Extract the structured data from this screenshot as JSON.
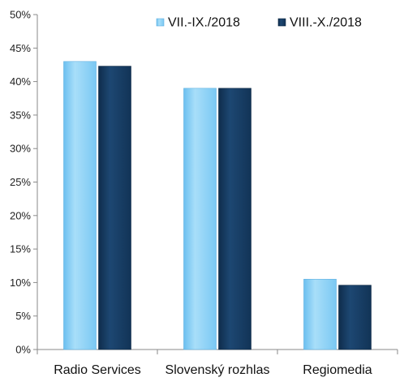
{
  "chart_data": {
    "type": "bar",
    "categories": [
      "Radio Services",
      "Slovenský rozhlas",
      "Regiomedia"
    ],
    "series": [
      {
        "name": "VII.-IX./2018",
        "values": [
          43,
          39,
          10.5
        ],
        "color": "#8ed1f7"
      },
      {
        "name": "VIII.-X./2018",
        "values": [
          42.3,
          39,
          9.6
        ],
        "color": "#163b61"
      }
    ],
    "ylim": [
      0,
      50
    ],
    "ytick_step": 5,
    "ytick_labels": [
      "0%",
      "5%",
      "10%",
      "15%",
      "20%",
      "25%",
      "30%",
      "35%",
      "40%",
      "45%",
      "50%"
    ],
    "grid": false,
    "legend_position": "top-right",
    "title": "",
    "xlabel": "",
    "ylabel": ""
  }
}
